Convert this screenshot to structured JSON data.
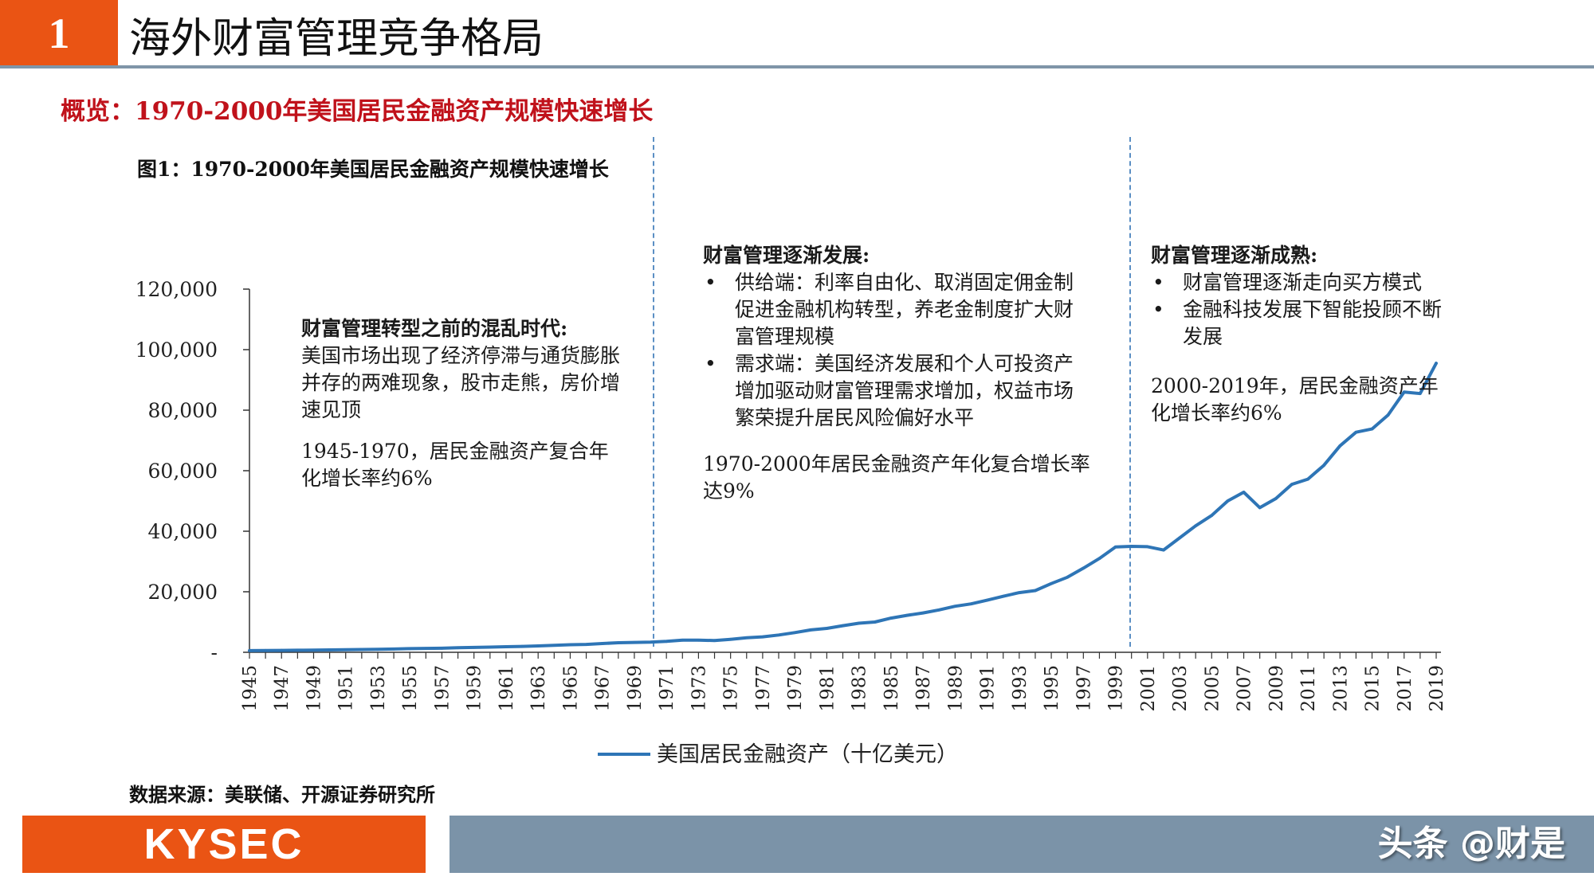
{
  "header": {
    "section_number": "1",
    "title": "海外财富管理竞争格局"
  },
  "subtitle": "概览：1970-2000年美国居民金融资产规模快速增长",
  "figure_title": "图1：1970-2000年美国居民金融资产规模快速增长",
  "source": "数据来源：美联储、开源证券研究所",
  "annotations": {
    "phase1": {
      "head": "财富管理转型之前的混乱时代:",
      "body": "美国市场出现了经济停滞与通货膨胀并存的两难现象，股市走熊，房价增速见顶",
      "note": "1945-1970，居民金融资产复合年化增长率约6%"
    },
    "phase2": {
      "head": "财富管理逐渐发展:",
      "bullets": [
        "供给端：利率自由化、取消固定佣金制促进金融机构转型，养老金制度扩大财富管理规模",
        "需求端：美国经济发展和个人可投资产增加驱动财富管理需求增加，权益市场繁荣提升居民风险偏好水平"
      ],
      "note": "1970-2000年居民金融资产年化复合增长率达9%"
    },
    "phase3": {
      "head": "财富管理逐渐成熟:",
      "bullets": [
        "财富管理逐渐走向买方模式",
        "金融科技发展下智能投顾不断发展"
      ],
      "note": "2000-2019年，居民金融资产年化增长率约6%"
    }
  },
  "footer": {
    "logo": "KYSEC",
    "watermark": "头条 @财是"
  },
  "colors": {
    "accent": "#ea5414",
    "title_red": "#c0121b",
    "line": "#2e75b6",
    "divider": "#5b8fc4",
    "footer_bar": "#7b93a8"
  },
  "chart_data": {
    "type": "line",
    "title": "图1：1970-2000年美国居民金融资产规模快速增长",
    "xlabel": "",
    "ylabel": "",
    "xlim": [
      1945,
      2019
    ],
    "ylim": [
      0,
      120000
    ],
    "y_ticks": [
      0,
      20000,
      40000,
      60000,
      80000,
      100000,
      120000
    ],
    "y_tick_labels": [
      "-",
      "20,000",
      "40,000",
      "60,000",
      "80,000",
      "100,000",
      "120,000"
    ],
    "x_tick_labels": [
      "1945",
      "1947",
      "1949",
      "1951",
      "1953",
      "1955",
      "1957",
      "1959",
      "1961",
      "1963",
      "1965",
      "1967",
      "1969",
      "1971",
      "1973",
      "1975",
      "1977",
      "1979",
      "1981",
      "1983",
      "1985",
      "1987",
      "1989",
      "1991",
      "1993",
      "1995",
      "1997",
      "1999",
      "2001",
      "2003",
      "2005",
      "2007",
      "2009",
      "2011",
      "2013",
      "2015",
      "2017",
      "2019"
    ],
    "grid": false,
    "legend_position": "bottom",
    "dividers": [
      1970,
      2000
    ],
    "series": [
      {
        "name": "美国居民金融资产（十亿美元）",
        "x": [
          1945,
          1946,
          1947,
          1948,
          1949,
          1950,
          1951,
          1952,
          1953,
          1954,
          1955,
          1956,
          1957,
          1958,
          1959,
          1960,
          1961,
          1962,
          1963,
          1964,
          1965,
          1966,
          1967,
          1968,
          1969,
          1970,
          1971,
          1972,
          1973,
          1974,
          1975,
          1976,
          1977,
          1978,
          1979,
          1980,
          1981,
          1982,
          1983,
          1984,
          1985,
          1986,
          1987,
          1988,
          1989,
          1990,
          1991,
          1992,
          1993,
          1994,
          1995,
          1996,
          1997,
          1998,
          1999,
          2000,
          2001,
          2002,
          2003,
          2004,
          2005,
          2006,
          2007,
          2008,
          2009,
          2010,
          2011,
          2012,
          2013,
          2014,
          2015,
          2016,
          2017,
          2018,
          2019
        ],
        "values": [
          560,
          600,
          640,
          680,
          720,
          780,
          850,
          920,
          970,
          1080,
          1200,
          1280,
          1330,
          1500,
          1600,
          1700,
          1850,
          1950,
          2100,
          2300,
          2500,
          2600,
          2900,
          3150,
          3250,
          3350,
          3600,
          4000,
          4000,
          3900,
          4300,
          4800,
          5100,
          5700,
          6500,
          7400,
          7900,
          8800,
          9600,
          10000,
          11300,
          12200,
          13000,
          14000,
          15200,
          16000,
          17200,
          18500,
          19700,
          20400,
          22700,
          24800,
          27800,
          31000,
          34800,
          35000,
          34900,
          33800,
          37800,
          41800,
          45200,
          50000,
          52900,
          47800,
          50800,
          55500,
          57200,
          61800,
          68200,
          72700,
          73800,
          78400,
          86000,
          85500,
          95500
        ]
      }
    ]
  }
}
